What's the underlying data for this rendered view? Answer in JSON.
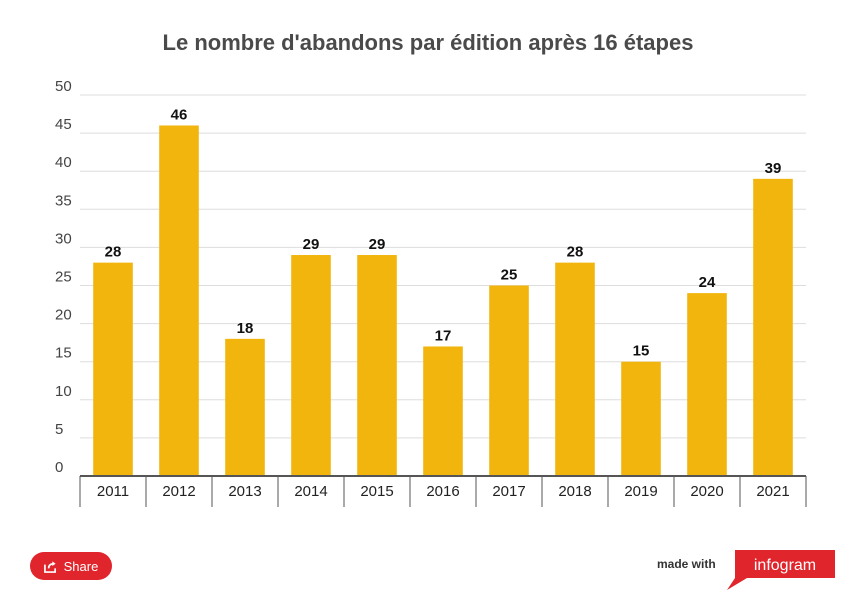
{
  "chart_data": {
    "type": "bar",
    "title": "Le nombre d'abandons par édition après 16 étapes",
    "categories": [
      "2011",
      "2012",
      "2013",
      "2014",
      "2015",
      "2016",
      "2017",
      "2018",
      "2019",
      "2020",
      "2021"
    ],
    "values": [
      28,
      46,
      18,
      29,
      29,
      17,
      25,
      28,
      15,
      24,
      39
    ],
    "ylim": [
      0,
      50
    ],
    "yticks": [
      "0",
      "5",
      "10",
      "15",
      "20",
      "25",
      "30",
      "35",
      "40",
      "45",
      "50"
    ],
    "xlabel": "",
    "ylabel": "",
    "grid": true,
    "bar_color": "#f2b50e"
  },
  "footer": {
    "share_label": "Share",
    "made_with": "made with",
    "brand": "infogram"
  },
  "colors": {
    "share": "#e0262c",
    "brand": "#e0262c"
  }
}
